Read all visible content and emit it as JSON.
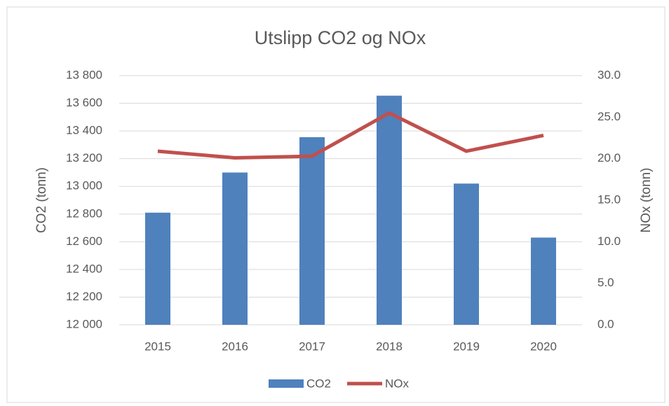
{
  "chart_data": {
    "type": "bar-line",
    "title": "Utslipp CO2 og NOx",
    "y_label": "CO2 (tonn)",
    "y2_label": "NOx (tonn)",
    "categories": [
      "2015",
      "2016",
      "2017",
      "2018",
      "2019",
      "2020"
    ],
    "series": [
      {
        "name": "CO2",
        "type": "bar",
        "color": "#4f81bd",
        "values": [
          12810,
          13100,
          13355,
          13655,
          13020,
          12630
        ]
      },
      {
        "name": "NOx",
        "type": "line",
        "axis": "y2",
        "color": "#c0504d",
        "values": [
          20.9,
          20.1,
          20.3,
          25.5,
          20.9,
          22.8
        ]
      }
    ],
    "ylim": [
      12000,
      13800
    ],
    "yticks": [
      {
        "value": 12000,
        "label": "12 000"
      },
      {
        "value": 12200,
        "label": "12 200"
      },
      {
        "value": 12400,
        "label": "12 400"
      },
      {
        "value": 12600,
        "label": "12 600"
      },
      {
        "value": 12800,
        "label": "12 800"
      },
      {
        "value": 13000,
        "label": "13 000"
      },
      {
        "value": 13200,
        "label": "13 200"
      },
      {
        "value": 13400,
        "label": "13 400"
      },
      {
        "value": 13600,
        "label": "13 600"
      },
      {
        "value": 13800,
        "label": "13 800"
      }
    ],
    "y2lim": [
      0,
      30
    ],
    "y2ticks": [
      {
        "value": 0,
        "label": "0.0"
      },
      {
        "value": 5,
        "label": "5.0"
      },
      {
        "value": 10,
        "label": "10.0"
      },
      {
        "value": 15,
        "label": "15.0"
      },
      {
        "value": 20,
        "label": "20.0"
      },
      {
        "value": 25,
        "label": "25.0"
      },
      {
        "value": 30,
        "label": "30.0"
      }
    ],
    "grid": true,
    "legend": "bottom"
  }
}
